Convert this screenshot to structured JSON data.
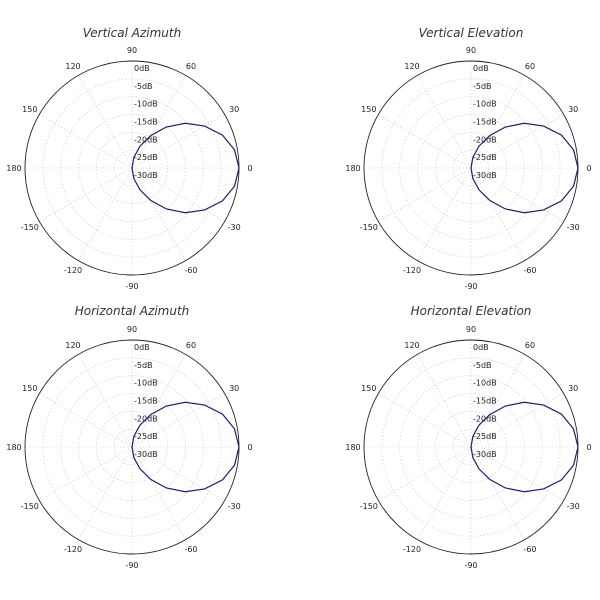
{
  "chart_data": [
    {
      "type": "polar",
      "title": "Vertical Azimuth",
      "angle_ticks": [
        "0",
        "30",
        "60",
        "90",
        "120",
        "150",
        "180",
        "-150",
        "-120",
        "-90",
        "-60",
        "-30"
      ],
      "radial_ticks": [
        "0dB",
        "-5dB",
        "-10dB",
        "-15dB",
        "-20dB",
        "-25dB",
        "-30dB"
      ],
      "rlim": [
        -30,
        0
      ],
      "grid": true,
      "series": [
        {
          "color": "#1a1f6e",
          "angle_deg": [
            -90,
            -80,
            -70,
            -60,
            -50,
            -40,
            -30,
            -20,
            -10,
            0,
            10,
            20,
            30,
            40,
            50,
            60,
            70,
            80,
            90
          ],
          "gain_db": [
            -30,
            -27,
            -23.5,
            -19.5,
            -15,
            -10.5,
            -6.5,
            -3,
            -0.8,
            0,
            -0.8,
            -3,
            -6.5,
            -10.5,
            -15,
            -19.5,
            -23.5,
            -27,
            -30
          ]
        }
      ]
    },
    {
      "type": "polar",
      "title": "Vertical Elevation",
      "angle_ticks": [
        "0",
        "30",
        "60",
        "90",
        "120",
        "150",
        "180",
        "-150",
        "-120",
        "-90",
        "-60",
        "-30"
      ],
      "radial_ticks": [
        "0dB",
        "-5dB",
        "-10dB",
        "-15dB",
        "-20dB",
        "-25dB",
        "-30dB"
      ],
      "rlim": [
        -30,
        0
      ],
      "grid": true,
      "series": [
        {
          "color": "#1a1f6e",
          "angle_deg": [
            -90,
            -80,
            -70,
            -60,
            -50,
            -40,
            -30,
            -20,
            -10,
            0,
            10,
            20,
            30,
            40,
            50,
            60,
            70,
            80,
            90
          ],
          "gain_db": [
            -30,
            -27,
            -23.5,
            -19.5,
            -15,
            -10.5,
            -6.5,
            -3,
            -0.8,
            0,
            -0.8,
            -3,
            -6.5,
            -10.5,
            -15,
            -19.5,
            -23.5,
            -27,
            -30
          ]
        }
      ]
    },
    {
      "type": "polar",
      "title": "Horizontal Azimuth",
      "angle_ticks": [
        "0",
        "30",
        "60",
        "90",
        "120",
        "150",
        "180",
        "-150",
        "-120",
        "-90",
        "-60",
        "-30"
      ],
      "radial_ticks": [
        "0dB",
        "-5dB",
        "-10dB",
        "-15dB",
        "-20dB",
        "-25dB",
        "-30dB"
      ],
      "rlim": [
        -30,
        0
      ],
      "grid": true,
      "series": [
        {
          "color": "#1a1f6e",
          "angle_deg": [
            -90,
            -80,
            -70,
            -60,
            -50,
            -40,
            -30,
            -20,
            -10,
            0,
            10,
            20,
            30,
            40,
            50,
            60,
            70,
            80,
            90
          ],
          "gain_db": [
            -30,
            -27,
            -23.5,
            -19.5,
            -15,
            -10.5,
            -6.5,
            -3,
            -0.8,
            0,
            -0.8,
            -3,
            -6.5,
            -10.5,
            -15,
            -19.5,
            -23.5,
            -27,
            -30
          ]
        }
      ]
    },
    {
      "type": "polar",
      "title": "Horizontal Elevation",
      "angle_ticks": [
        "0",
        "30",
        "60",
        "90",
        "120",
        "150",
        "180",
        "-150",
        "-120",
        "-90",
        "-60",
        "-30"
      ],
      "radial_ticks": [
        "0dB",
        "-5dB",
        "-10dB",
        "-15dB",
        "-20dB",
        "-25dB",
        "-30dB"
      ],
      "rlim": [
        -30,
        0
      ],
      "grid": true,
      "series": [
        {
          "color": "#1a1f6e",
          "angle_deg": [
            -90,
            -80,
            -70,
            -60,
            -50,
            -40,
            -30,
            -20,
            -10,
            0,
            10,
            20,
            30,
            40,
            50,
            60,
            70,
            80,
            90
          ],
          "gain_db": [
            -30,
            -27,
            -23.5,
            -19.5,
            -15,
            -10.5,
            -6.5,
            -3,
            -0.8,
            0,
            -0.8,
            -3,
            -6.5,
            -10.5,
            -15,
            -19.5,
            -23.5,
            -27,
            -30
          ]
        }
      ]
    }
  ]
}
